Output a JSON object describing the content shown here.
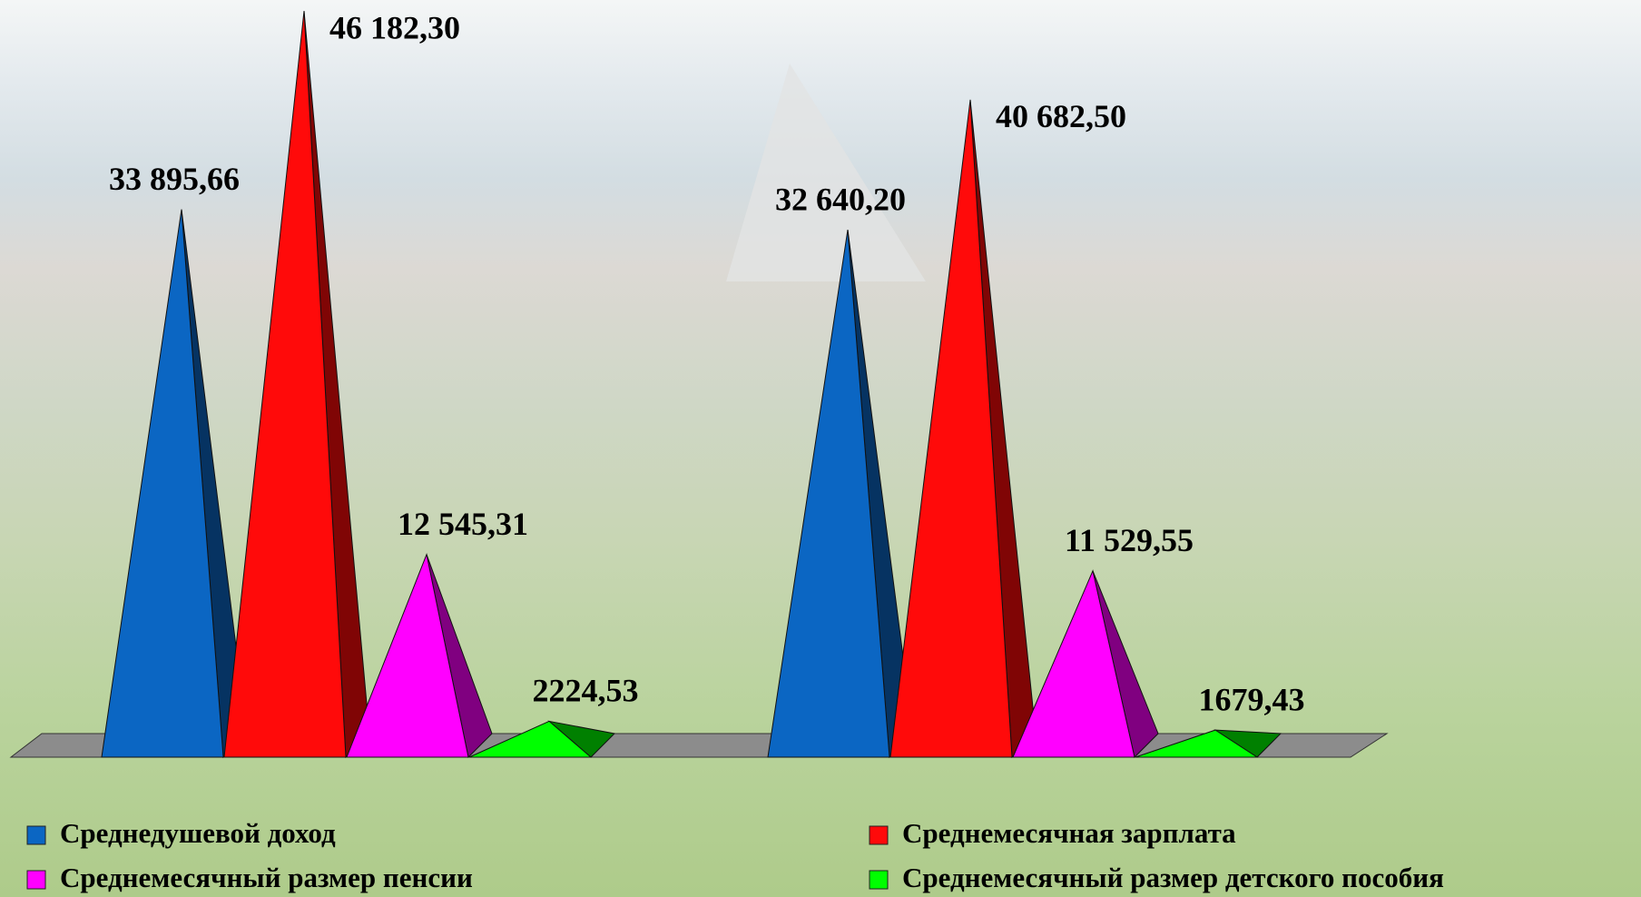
{
  "chart_data": {
    "type": "pyramid",
    "categories": [
      null,
      null
    ],
    "series": [
      {
        "name": "Среднедушевой доход",
        "color": "#0b66c3",
        "values": [
          33895.66,
          32640.2
        ],
        "value_labels": [
          "33 895,66",
          "32 640,20"
        ]
      },
      {
        "name": "Среднемесячная зарплата",
        "color": "#ff0a0a",
        "values": [
          46182.3,
          40682.5
        ],
        "value_labels": [
          "46 182,30",
          "40 682,50"
        ]
      },
      {
        "name": "Среднемесячный размер пенсии",
        "color": "#ff00ff",
        "values": [
          12545.31,
          11529.55
        ],
        "value_labels": [
          "12 545,31",
          "11 529,55"
        ]
      },
      {
        "name": "Среднемесячный размер детского пособия",
        "color": "#00ff00",
        "values": [
          2224.53,
          1679.43
        ],
        "value_labels": [
          "2224,53",
          "1679,43"
        ]
      }
    ]
  }
}
